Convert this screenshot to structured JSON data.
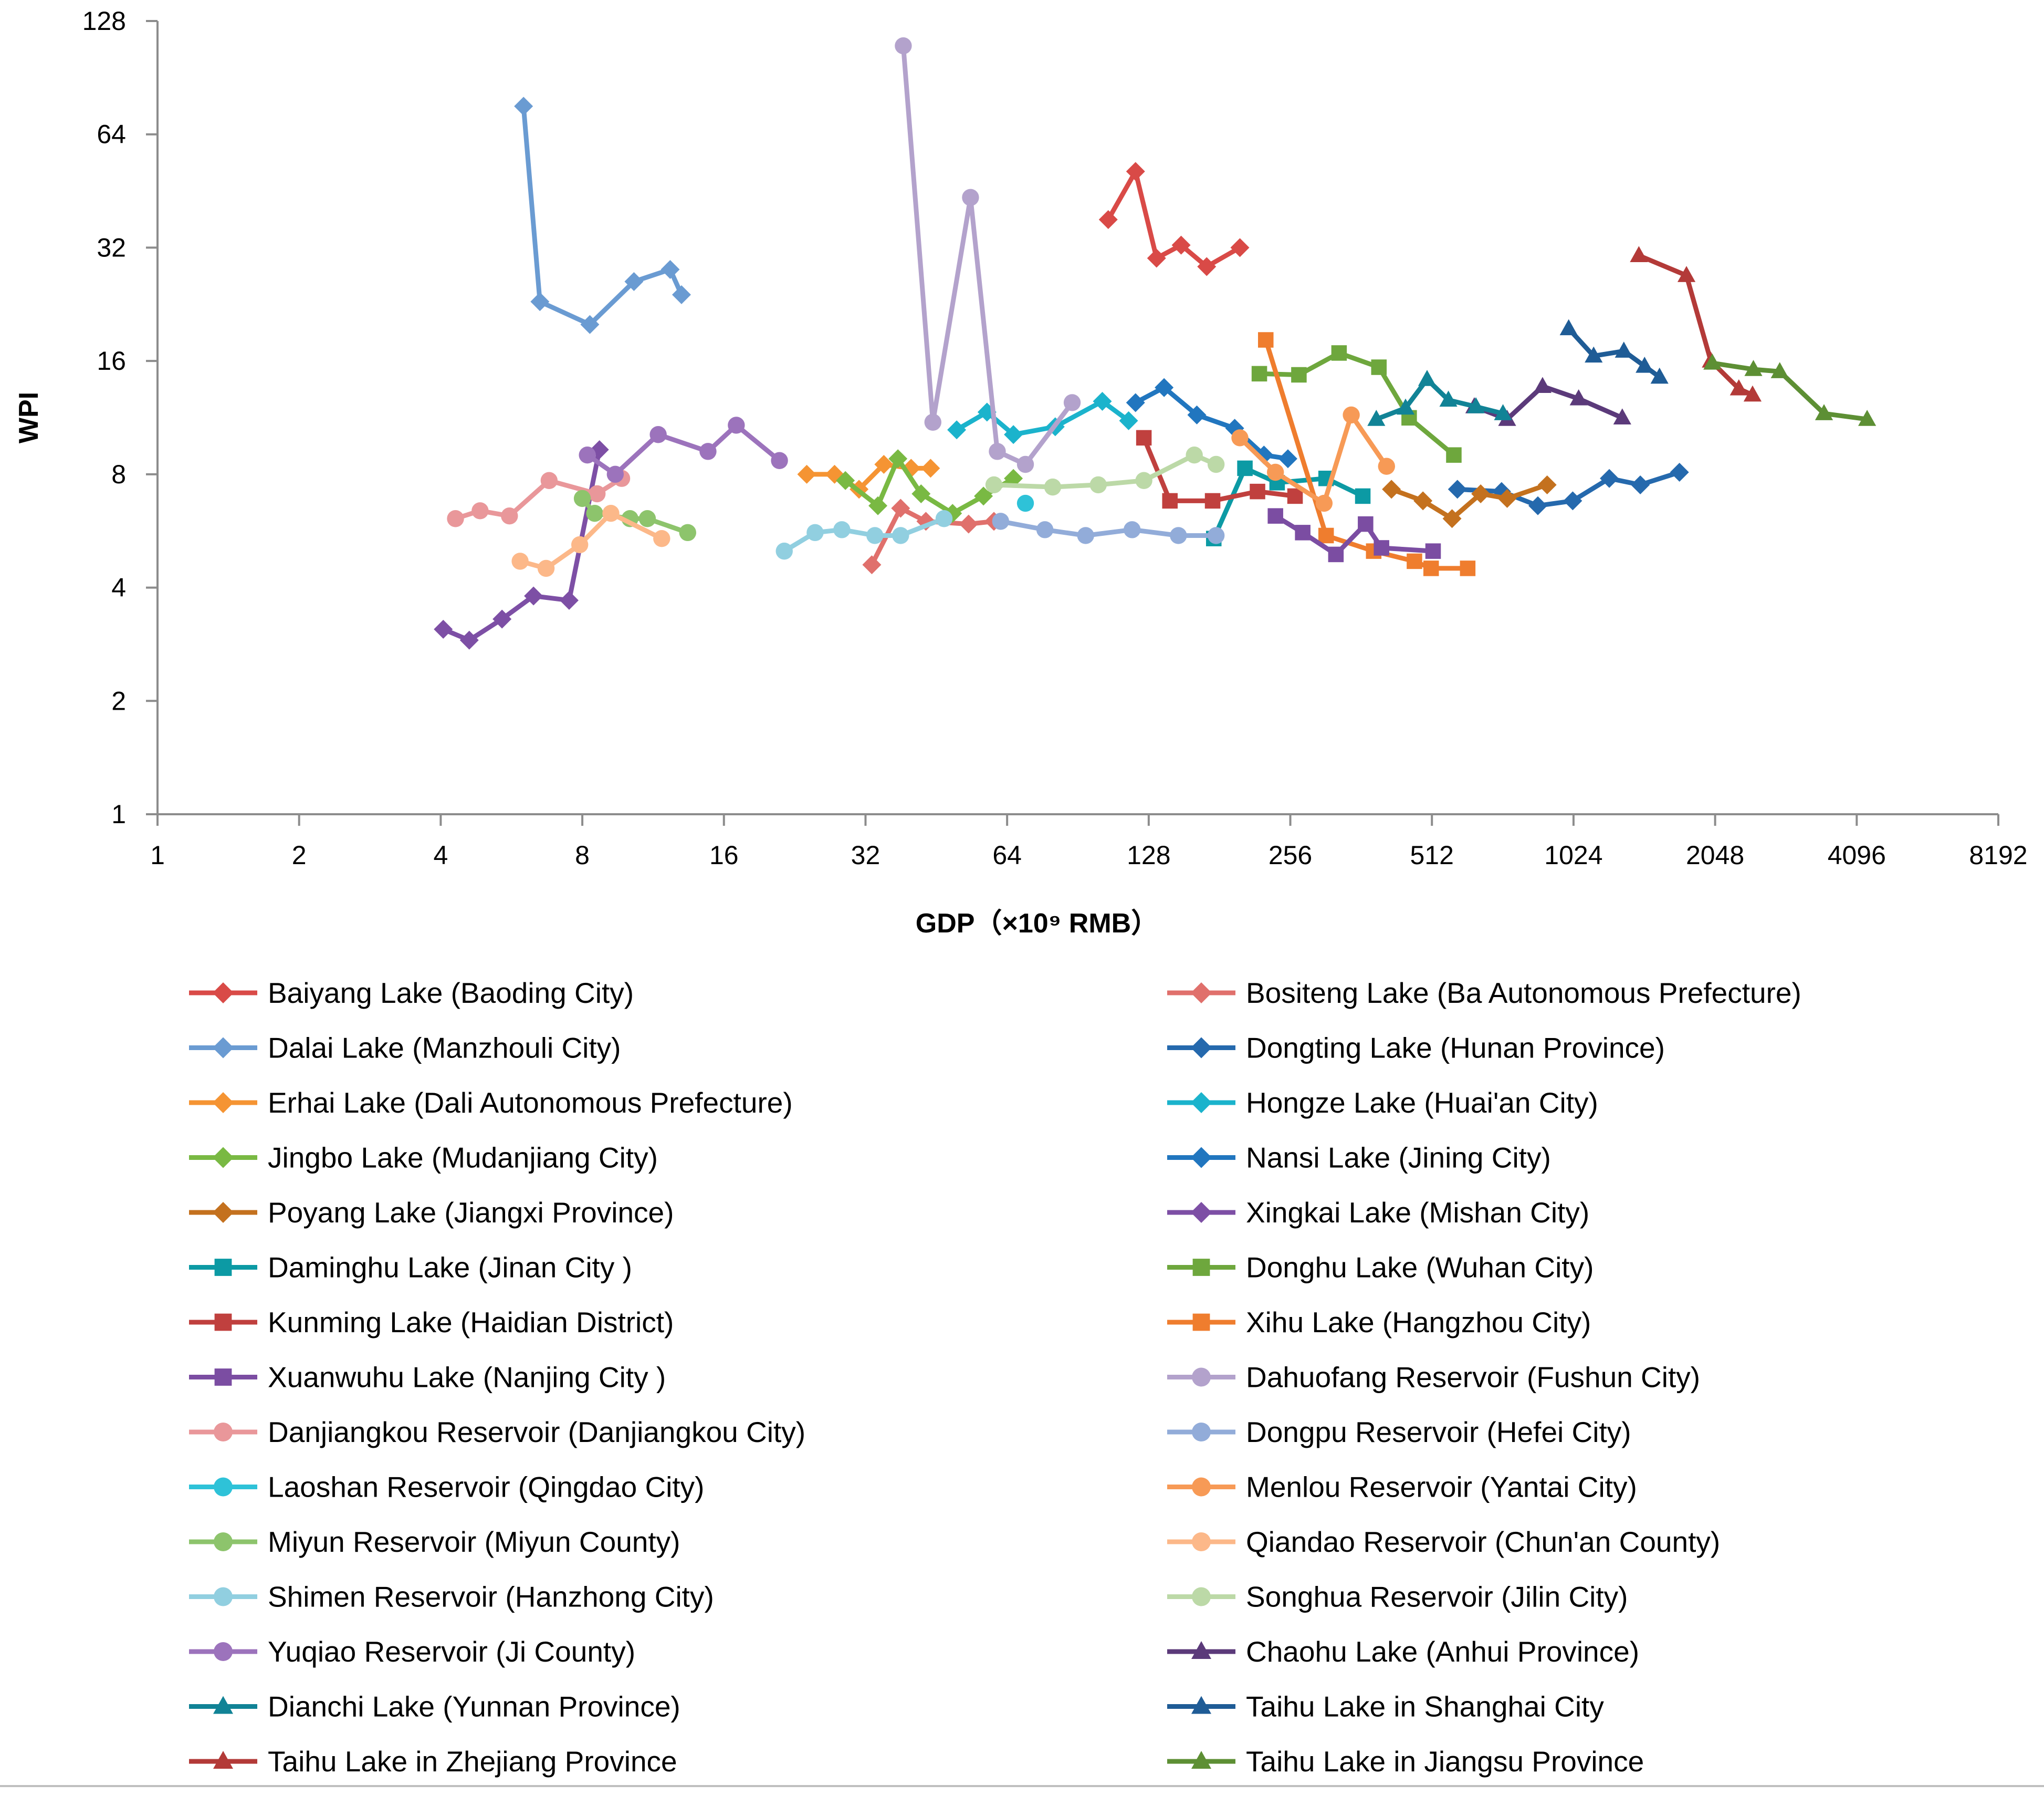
{
  "chart_data": {
    "type": "line",
    "xlabel": "GDP（×10⁹ RMB）",
    "ylabel": "WPI",
    "xscale": "log2",
    "yscale": "log2",
    "xlim": [
      1,
      8192
    ],
    "ylim": [
      1,
      128
    ],
    "x_ticks": [
      "1",
      "2",
      "4",
      "8",
      "16",
      "32",
      "64",
      "128",
      "256",
      "512",
      "1024",
      "2048",
      "4096",
      "8192"
    ],
    "y_ticks": [
      "1",
      "2",
      "4",
      "8",
      "16",
      "32",
      "64",
      "128"
    ],
    "legend_position": "bottom, two columns",
    "grid": false,
    "series": [
      {
        "name": "Baiyang Lake (Baoding City)",
        "color": "#d94a47",
        "marker": "diamond",
        "points": [
          [
            105,
            38
          ],
          [
            120,
            51
          ],
          [
            133,
            30
          ],
          [
            150,
            32.5
          ],
          [
            170,
            28.5
          ],
          [
            200,
            32
          ]
        ]
      },
      {
        "name": "Bositeng Lake (Ba Autonomous Prefecture)",
        "color": "#e0706c",
        "marker": "diamond",
        "points": [
          [
            33,
            4.6
          ],
          [
            38,
            6.5
          ],
          [
            43,
            6.0
          ],
          [
            53,
            5.9
          ],
          [
            60,
            6.0
          ]
        ]
      },
      {
        "name": "Dalai Lake (Manzhouli City)",
        "color": "#6a9bd2",
        "marker": "diamond",
        "points": [
          [
            6.0,
            76
          ],
          [
            6.5,
            23
          ],
          [
            8.3,
            20
          ],
          [
            10.3,
            26
          ],
          [
            12.3,
            28
          ],
          [
            13.0,
            24
          ]
        ]
      },
      {
        "name": "Dongting Lake (Hunan Province)",
        "color": "#2569ad",
        "marker": "diamond",
        "points": [
          [
            580,
            7.3
          ],
          [
            720,
            7.2
          ],
          [
            860,
            6.6
          ],
          [
            1020,
            6.8
          ],
          [
            1220,
            7.8
          ],
          [
            1420,
            7.5
          ],
          [
            1720,
            8.1
          ]
        ]
      },
      {
        "name": "Erhai Lake (Dali Autonomous Prefecture)",
        "color": "#f59433",
        "marker": "diamond",
        "points": [
          [
            24,
            8.0
          ],
          [
            27.5,
            8.0
          ],
          [
            31,
            7.3
          ],
          [
            35,
            8.5
          ],
          [
            40,
            8.3
          ],
          [
            44,
            8.3
          ]
        ]
      },
      {
        "name": "Hongze Lake (Huai'an City)",
        "color": "#1bb3cc",
        "marker": "diamond",
        "points": [
          [
            50,
            10.5
          ],
          [
            58,
            11.7
          ],
          [
            66,
            10.2
          ],
          [
            81,
            10.7
          ],
          [
            102,
            12.5
          ],
          [
            116,
            11.1
          ]
        ]
      },
      {
        "name": "Jingbo Lake (Mudanjiang City)",
        "color": "#79b943",
        "marker": "diamond",
        "points": [
          [
            29,
            7.7
          ],
          [
            34,
            6.6
          ],
          [
            37.5,
            8.8
          ],
          [
            42,
            7.1
          ],
          [
            49,
            6.3
          ],
          [
            57,
            7.0
          ],
          [
            66,
            7.8
          ]
        ]
      },
      {
        "name": "Nansi Lake (Jining City)",
        "color": "#2176bf",
        "marker": "diamond",
        "points": [
          [
            120,
            12.4
          ],
          [
            138,
            13.6
          ],
          [
            162,
            11.5
          ],
          [
            195,
            10.6
          ],
          [
            225,
            9.0
          ],
          [
            253,
            8.8
          ]
        ]
      },
      {
        "name": "Poyang Lake (Jiangxi Province)",
        "color": "#c4711e",
        "marker": "diamond",
        "points": [
          [
            420,
            7.3
          ],
          [
            490,
            6.8
          ],
          [
            565,
            6.1
          ],
          [
            650,
            7.1
          ],
          [
            740,
            6.9
          ],
          [
            900,
            7.5
          ]
        ]
      },
      {
        "name": "Xingkai Lake (Mishan City)",
        "color": "#7d4fa5",
        "marker": "diamond",
        "points": [
          [
            4.05,
            3.1
          ],
          [
            4.6,
            2.9
          ],
          [
            5.4,
            3.3
          ],
          [
            6.3,
            3.8
          ],
          [
            7.5,
            3.7
          ],
          [
            8.7,
            9.3
          ]
        ]
      },
      {
        "name": "Daminghu Lake (Jinan City )",
        "color": "#0c9aa4",
        "marker": "square",
        "points": [
          [
            176,
            5.4
          ],
          [
            205,
            8.3
          ],
          [
            240,
            7.6
          ],
          [
            305,
            7.8
          ],
          [
            365,
            7.0
          ]
        ]
      },
      {
        "name": "Donghu Lake (Wuhan City)",
        "color": "#6ea73d",
        "marker": "square",
        "points": [
          [
            220,
            14.8
          ],
          [
            267,
            14.7
          ],
          [
            325,
            16.8
          ],
          [
            395,
            15.4
          ],
          [
            458,
            11.3
          ],
          [
            570,
            9.0
          ]
        ]
      },
      {
        "name": "Kunming Lake (Haidian District)",
        "color": "#c0403e",
        "marker": "square",
        "points": [
          [
            125,
            10.0
          ],
          [
            142,
            6.8
          ],
          [
            175,
            6.8
          ],
          [
            218,
            7.2
          ],
          [
            262,
            7.0
          ]
        ]
      },
      {
        "name": "Xihu Lake (Hangzhou City)",
        "color": "#ef7d2e",
        "marker": "square",
        "points": [
          [
            227,
            18.2
          ],
          [
            305,
            5.5
          ],
          [
            385,
            5.0
          ],
          [
            470,
            4.7
          ],
          [
            510,
            4.5
          ],
          [
            610,
            4.5
          ]
        ]
      },
      {
        "name": "Xuanwuhu Lake (Nanjing City )",
        "color": "#7b4da2",
        "marker": "square",
        "points": [
          [
            238,
            6.2
          ],
          [
            272,
            5.6
          ],
          [
            320,
            4.9
          ],
          [
            370,
            5.9
          ],
          [
            400,
            5.1
          ],
          [
            515,
            5.0
          ]
        ]
      },
      {
        "name": "Dahuofang Reservoir (Fushun City)",
        "color": "#b3a2cc",
        "marker": "circle",
        "points": [
          [
            38.5,
            110
          ],
          [
            44.5,
            11.0
          ],
          [
            53.5,
            43.5
          ],
          [
            61,
            9.2
          ],
          [
            70,
            8.5
          ],
          [
            88,
            12.4
          ]
        ]
      },
      {
        "name": "Danjiangkou Reservoir (Danjiangkou City)",
        "color": "#e9979a",
        "marker": "circle",
        "points": [
          [
            4.3,
            6.1
          ],
          [
            4.85,
            6.4
          ],
          [
            5.6,
            6.2
          ],
          [
            6.8,
            7.7
          ],
          [
            8.6,
            7.1
          ],
          [
            9.7,
            7.8
          ]
        ]
      },
      {
        "name": "Dongpu Reservoir (Hefei City)",
        "color": "#92acd9",
        "marker": "circle",
        "points": [
          [
            62,
            6.0
          ],
          [
            77,
            5.7
          ],
          [
            94,
            5.5
          ],
          [
            118,
            5.7
          ],
          [
            148,
            5.5
          ],
          [
            178,
            5.5
          ]
        ]
      },
      {
        "name": "Laoshan Reservoir (Qingdao City)",
        "color": "#2ec2d8",
        "marker": "circle",
        "points": [
          [
            70,
            6.7
          ]
        ]
      },
      {
        "name": "Menlou Reservoir (Yantai City)",
        "color": "#f79a56",
        "marker": "circle",
        "points": [
          [
            200,
            10.0
          ],
          [
            238,
            8.1
          ],
          [
            302,
            6.7
          ],
          [
            345,
            11.5
          ],
          [
            410,
            8.4
          ]
        ]
      },
      {
        "name": "Miyun Reservoir (Miyun County)",
        "color": "#8dc46c",
        "marker": "circle",
        "points": [
          [
            8.0,
            6.9
          ],
          [
            8.5,
            6.3
          ],
          [
            10.1,
            6.1
          ],
          [
            11.0,
            6.1
          ],
          [
            13.4,
            5.6
          ]
        ]
      },
      {
        "name": "Qiandao Reservoir (Chun'an County)",
        "color": "#fcb889",
        "marker": "circle",
        "points": [
          [
            5.9,
            4.7
          ],
          [
            6.7,
            4.5
          ],
          [
            7.9,
            5.2
          ],
          [
            9.2,
            6.3
          ],
          [
            11.8,
            5.4
          ]
        ]
      },
      {
        "name": "Shimen Reservoir (Hanzhong City)",
        "color": "#91cfe0",
        "marker": "circle",
        "points": [
          [
            21.5,
            5.0
          ],
          [
            25,
            5.6
          ],
          [
            28.5,
            5.7
          ],
          [
            33.5,
            5.5
          ],
          [
            38,
            5.5
          ],
          [
            47,
            6.1
          ]
        ]
      },
      {
        "name": "Songhua Reservoir (Jilin City)",
        "color": "#bcd9a7",
        "marker": "circle",
        "points": [
          [
            60,
            7.5
          ],
          [
            80,
            7.4
          ],
          [
            100,
            7.5
          ],
          [
            125,
            7.7
          ],
          [
            160,
            9.0
          ],
          [
            178,
            8.5
          ]
        ]
      },
      {
        "name": "Yuqiao Reservoir (Ji County)",
        "color": "#9c73bc",
        "marker": "circle",
        "points": [
          [
            8.2,
            9.0
          ],
          [
            9.4,
            8.0
          ],
          [
            11.6,
            10.2
          ],
          [
            14.8,
            9.2
          ],
          [
            17.0,
            10.8
          ],
          [
            21.0,
            8.7
          ]
        ]
      },
      {
        "name": "Chaohu Lake (Anhui Province)",
        "color": "#5b3a7a",
        "marker": "triangle",
        "points": [
          [
            630,
            12.1
          ],
          [
            740,
            11.2
          ],
          [
            880,
            13.7
          ],
          [
            1050,
            12.7
          ],
          [
            1300,
            11.3
          ]
        ]
      },
      {
        "name": "Dianchi Lake (Yunnan Province)",
        "color": "#118396",
        "marker": "triangle",
        "points": [
          [
            390,
            11.2
          ],
          [
            450,
            12.0
          ],
          [
            500,
            14.3
          ],
          [
            555,
            12.6
          ],
          [
            635,
            12.1
          ],
          [
            725,
            11.6
          ]
        ]
      },
      {
        "name": "Taihu Lake in Shanghai City",
        "color": "#1f5c96",
        "marker": "triangle",
        "points": [
          [
            1000,
            19.5
          ],
          [
            1130,
            16.5
          ],
          [
            1310,
            17.0
          ],
          [
            1450,
            15.5
          ],
          [
            1560,
            14.5
          ]
        ]
      },
      {
        "name": "Taihu Lake in Zhejiang Province",
        "color": "#b33a38",
        "marker": "triangle",
        "points": [
          [
            1410,
            30.5
          ],
          [
            1780,
            27.0
          ],
          [
            2005,
            16.0
          ],
          [
            2300,
            13.5
          ],
          [
            2460,
            13.0
          ]
        ]
      },
      {
        "name": "Taihu Lake in Jiangsu Province",
        "color": "#5d8f34",
        "marker": "triangle",
        "points": [
          [
            2020,
            15.8
          ],
          [
            2470,
            15.2
          ],
          [
            2810,
            15.0
          ],
          [
            3490,
            11.6
          ],
          [
            4310,
            11.2
          ]
        ]
      }
    ]
  }
}
